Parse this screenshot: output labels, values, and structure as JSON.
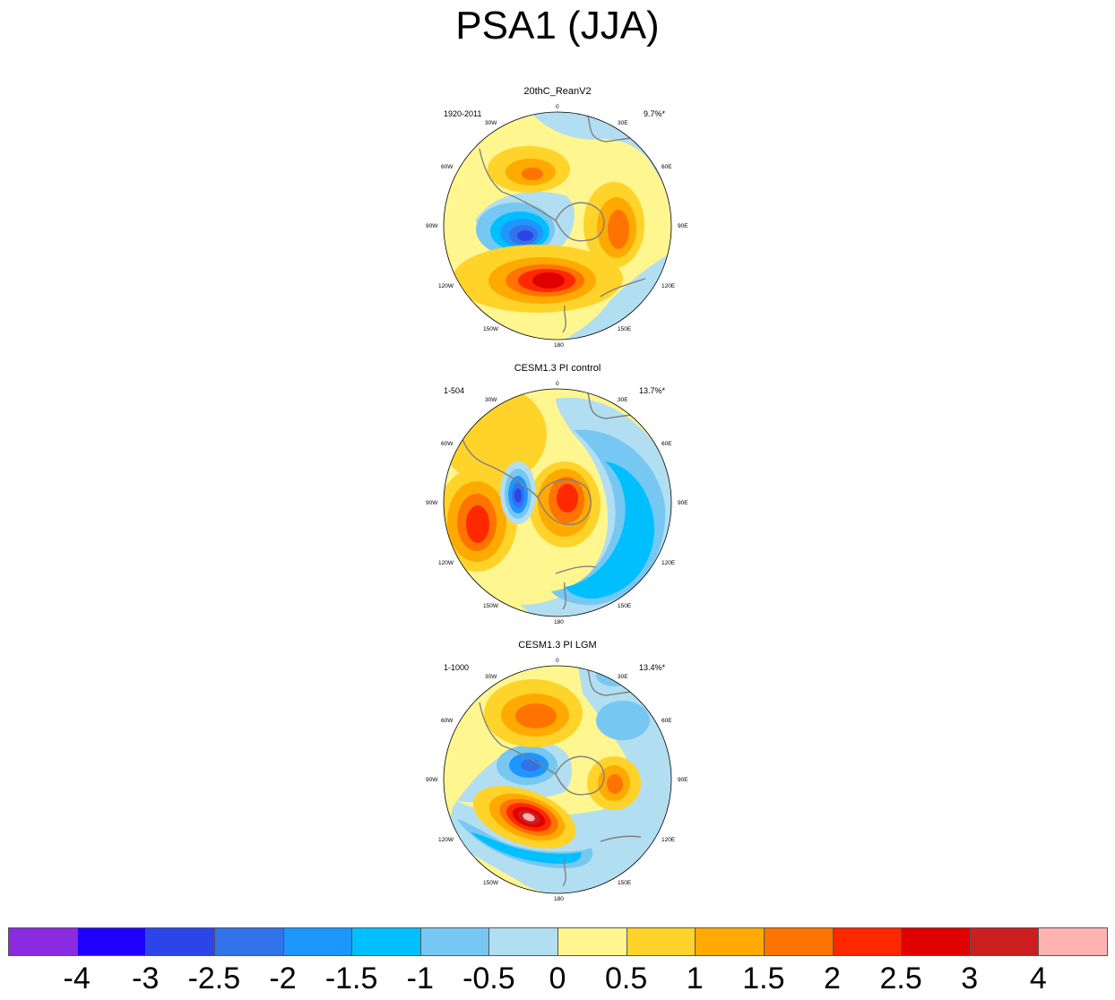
{
  "figure": {
    "title": "PSA1 (JJA)"
  },
  "chart_data": [
    {
      "type": "heatmap",
      "title": "20thC_ReanV2",
      "period": "1920-2011",
      "variance_explained": "9.7%*",
      "projection": "south polar stereographic",
      "lon_labels": [
        "0",
        "30E",
        "60E",
        "90E",
        "120E",
        "150E",
        "180",
        "150W",
        "120W",
        "90W",
        "60W",
        "30W"
      ]
    },
    {
      "type": "heatmap",
      "title": "CESM1.3 PI control",
      "period": "1-504",
      "variance_explained": "13.7%*",
      "projection": "south polar stereographic",
      "lon_labels": [
        "0",
        "30E",
        "60E",
        "90E",
        "120E",
        "150E",
        "180",
        "150W",
        "120W",
        "90W",
        "60W",
        "30W"
      ]
    },
    {
      "type": "heatmap",
      "title": "CESM1.3 PI LGM",
      "period": "1-1000",
      "variance_explained": "13.4%*",
      "projection": "south polar stereographic",
      "lon_labels": [
        "0",
        "30E",
        "60E",
        "90E",
        "120E",
        "150E",
        "180",
        "150W",
        "120W",
        "90W",
        "60W",
        "30W"
      ]
    }
  ],
  "colorbar": {
    "labels": [
      "-4",
      "-3",
      "-2.5",
      "-2",
      "-1.5",
      "-1",
      "-0.5",
      "0",
      "0.5",
      "1",
      "1.5",
      "2",
      "2.5",
      "3",
      "4"
    ],
    "colors": [
      "#8a2be2",
      "#1e00ff",
      "#2c45e8",
      "#3272ea",
      "#1e96ff",
      "#00bfff",
      "#76c8f2",
      "#b2def2",
      "#fff68f",
      "#ffd32a",
      "#ffaa00",
      "#ff7300",
      "#ff2800",
      "#e00000",
      "#cc1e1e",
      "#ffb2b2"
    ]
  },
  "colors": {
    "land_outline": "#808080",
    "background": "#ffffff"
  }
}
